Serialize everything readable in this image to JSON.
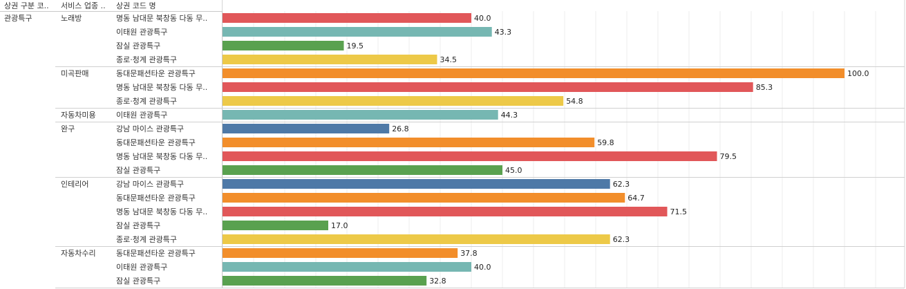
{
  "headers": {
    "col1": "상권 구분 코..",
    "col2": "서비스 업종 ..",
    "col3": "상권 코드 명"
  },
  "colors": {
    "명동 남대문 북창동 다동 무..": "#e15759",
    "이태원 관광특구": "#76b7b2",
    "잠실 관광특구": "#59a14f",
    "종로·청계 관광특구": "#edc948",
    "동대문패션타운 관광특구": "#f28e2b",
    "강남 마이스 관광특구": "#4e79a7"
  },
  "chart_data": {
    "type": "bar",
    "orientation": "horizontal",
    "xlim": [
      0,
      100
    ],
    "grid": true,
    "district_type": "관광특구",
    "groups": [
      {
        "industry": "노래방",
        "rows": [
          {
            "district": "명동 남대문 북창동 다동 무..",
            "value": 40.0,
            "label": "40.0"
          },
          {
            "district": "이태원 관광특구",
            "value": 43.3,
            "label": "43.3"
          },
          {
            "district": "잠실 관광특구",
            "value": 19.5,
            "label": "19.5"
          },
          {
            "district": "종로·청계 관광특구",
            "value": 34.5,
            "label": "34.5"
          }
        ]
      },
      {
        "industry": "미곡판매",
        "rows": [
          {
            "district": "동대문패션타운 관광특구",
            "value": 100.0,
            "label": "100.0"
          },
          {
            "district": "명동 남대문 북창동 다동 무..",
            "value": 85.3,
            "label": "85.3"
          },
          {
            "district": "종로·청계 관광특구",
            "value": 54.8,
            "label": "54.8"
          }
        ]
      },
      {
        "industry": "자동차미용",
        "rows": [
          {
            "district": "이태원 관광특구",
            "value": 44.3,
            "label": "44.3"
          }
        ]
      },
      {
        "industry": "완구",
        "rows": [
          {
            "district": "강남 마이스 관광특구",
            "value": 26.8,
            "label": "26.8"
          },
          {
            "district": "동대문패션타운 관광특구",
            "value": 59.8,
            "label": "59.8"
          },
          {
            "district": "명동 남대문 북창동 다동 무..",
            "value": 79.5,
            "label": "79.5"
          },
          {
            "district": "잠실 관광특구",
            "value": 45.0,
            "label": "45.0"
          }
        ]
      },
      {
        "industry": "인테리어",
        "rows": [
          {
            "district": "강남 마이스 관광특구",
            "value": 62.3,
            "label": "62.3"
          },
          {
            "district": "동대문패션타운 관광특구",
            "value": 64.7,
            "label": "64.7"
          },
          {
            "district": "명동 남대문 북창동 다동 무..",
            "value": 71.5,
            "label": "71.5"
          },
          {
            "district": "잠실 관광특구",
            "value": 17.0,
            "label": "17.0"
          },
          {
            "district": "종로·청계 관광특구",
            "value": 62.3,
            "label": "62.3"
          }
        ]
      },
      {
        "industry": "자동차수리",
        "rows": [
          {
            "district": "동대문패션타운 관광특구",
            "value": 37.8,
            "label": "37.8"
          },
          {
            "district": "이태원 관광특구",
            "value": 40.0,
            "label": "40.0"
          },
          {
            "district": "잠실 관광특구",
            "value": 32.8,
            "label": "32.8"
          }
        ]
      }
    ]
  }
}
